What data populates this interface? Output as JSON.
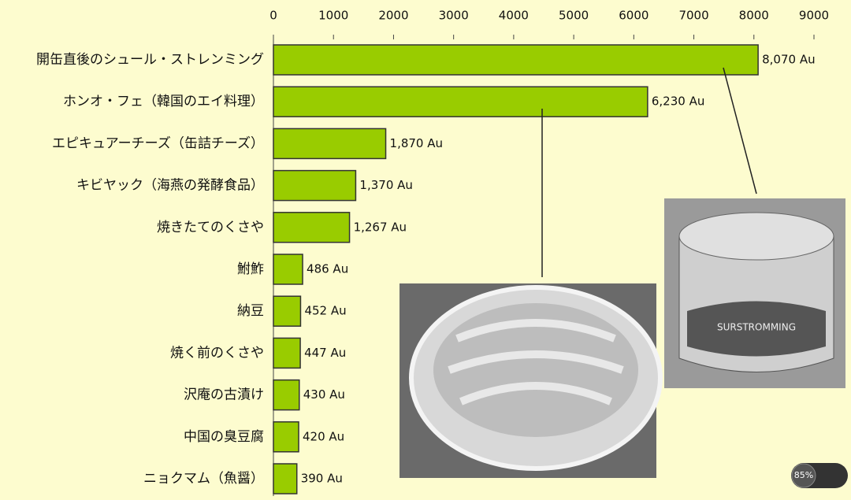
{
  "chart_data": {
    "type": "barh",
    "categories": [
      "開缶直後のシュール・ストレンミング",
      "ホンオ・フェ（韓国のエイ料理）",
      "エピキュアーチーズ（缶詰チーズ）",
      "キビヤック（海燕の発酵食品）",
      "焼きたてのくさや",
      "鮒鮓",
      "納豆",
      "焼く前のくさや",
      "沢庵の古漬け",
      "中国の臭豆腐",
      "ニョクマム（魚醤）"
    ],
    "values": [
      8070,
      6230,
      1870,
      1370,
      1267,
      486,
      452,
      447,
      430,
      420,
      390
    ],
    "value_labels": [
      "8,070 Au",
      "6,230 Au",
      "1,870 Au",
      "1,370 Au",
      "1,267 Au",
      "486 Au",
      "452 Au",
      "447 Au",
      "430 Au",
      "420 Au",
      "390 Au"
    ],
    "color": "#99cc00",
    "xlim": [
      0,
      9000
    ],
    "xticks": [
      0,
      1000,
      2000,
      3000,
      4000,
      5000,
      6000,
      7000,
      8000,
      9000
    ]
  },
  "overlay": {
    "can_label": "SURSTROMMING",
    "zoom": "85%"
  }
}
